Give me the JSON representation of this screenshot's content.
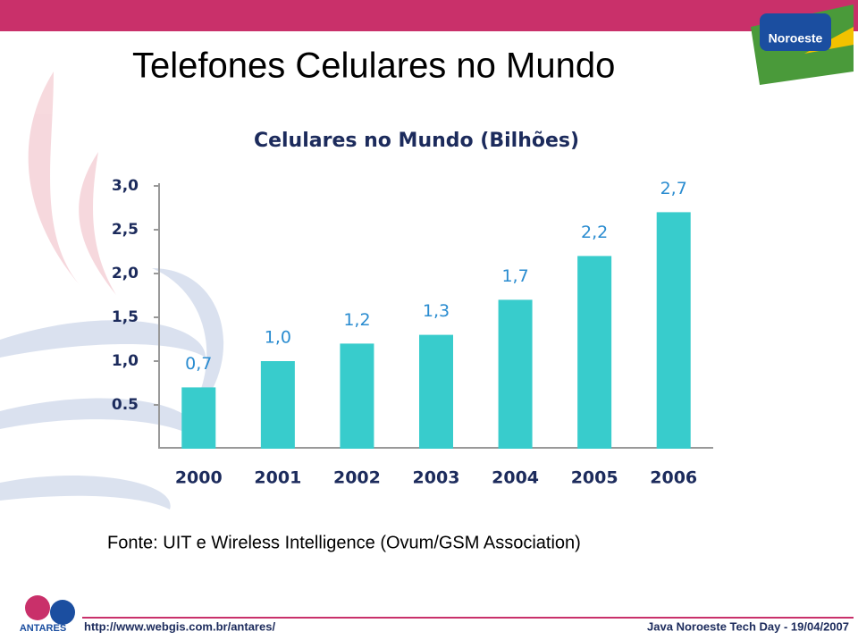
{
  "slide": {
    "title": "Telefones Celulares no Mundo",
    "source": "Fonte: UIT e Wireless Intelligence (Ovum/GSM Association)",
    "footer_left": "http://www.webgis.com.br/antares/",
    "footer_right": "Java Noroeste Tech Day - 19/04/2007",
    "logo_right": "Noroeste",
    "logo_left": "ANTARES"
  },
  "chart_data": {
    "type": "bar",
    "title": "Celulares no Mundo (Bilhões)",
    "categories": [
      "2000",
      "2001",
      "2002",
      "2003",
      "2004",
      "2005",
      "2006"
    ],
    "values": [
      0.7,
      1.0,
      1.2,
      1.3,
      1.7,
      2.2,
      2.7
    ],
    "value_labels": [
      "0,7",
      "1,0",
      "1,2",
      "1,3",
      "1,7",
      "2,2",
      "2,7"
    ],
    "color": "#38cccc",
    "ylim": [
      0,
      3.0
    ],
    "yticks": [
      0.5,
      {
        "value": 1.0,
        "label": "1,0"
      },
      {
        "value": 1.5,
        "label": "1,5"
      },
      {
        "value": 2.0,
        "label": "2,0"
      },
      {
        "value": 2.5,
        "label": "2,5"
      },
      {
        "value": 3.0,
        "label": "3,0"
      }
    ],
    "grid": false
  }
}
